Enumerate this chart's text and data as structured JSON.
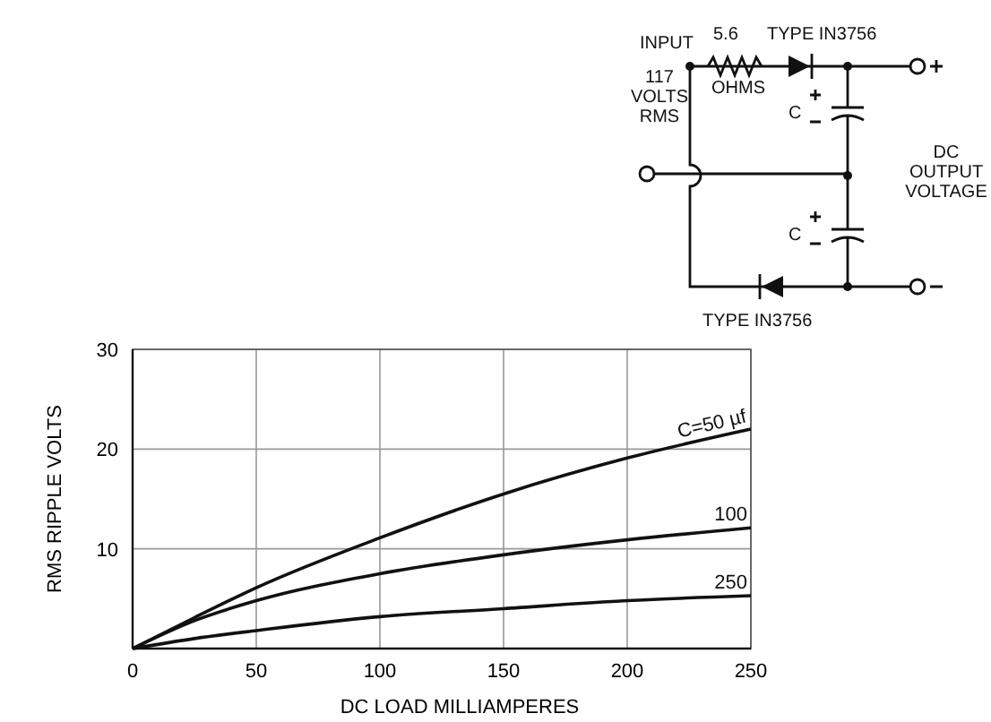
{
  "chart_data": {
    "type": "line",
    "xlabel": "DC LOAD MILLIAMPERES",
    "ylabel": "RMS RIPPLE VOLTS",
    "x": [
      0,
      25,
      50,
      100,
      150,
      200,
      250
    ],
    "xlim": [
      0,
      250
    ],
    "xticks": [
      0,
      50,
      100,
      150,
      200,
      250
    ],
    "ylim": [
      0,
      30
    ],
    "yticks": [
      {
        "value": 0,
        "label": null
      },
      10,
      20,
      30
    ],
    "grid": true,
    "marker": "none",
    "line_style": "solid",
    "series": [
      {
        "name": "C=50 µf",
        "color": "#111111",
        "values": [
          0,
          3.1,
          6.1,
          11.1,
          15.5,
          19.1,
          22
        ]
      },
      {
        "name": "100",
        "color": "#111111",
        "values": [
          0,
          2.8,
          4.8,
          7.5,
          9.4,
          10.9,
          12.1
        ]
      },
      {
        "name": "250",
        "color": "#111111",
        "values": [
          0,
          1,
          1.8,
          3.2,
          4,
          4.8,
          5.3
        ]
      }
    ],
    "annotations": [
      "INPUT",
      "5.6",
      "OHMS",
      "117 VOLTS RMS",
      "TYPE IN3756",
      "TYPE IN3756",
      "C",
      "C",
      "DC OUTPUT VOLTAGE"
    ]
  }
}
